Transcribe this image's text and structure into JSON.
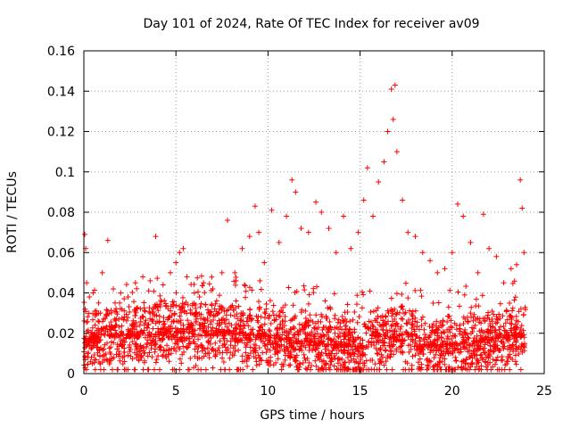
{
  "chart_data": {
    "type": "scatter",
    "title": "Day 101 of 2024, Rate Of TEC Index for receiver av09",
    "xlabel": "GPS time / hours",
    "ylabel": "ROTI / TECUs",
    "xlim": [
      0,
      25
    ],
    "ylim": [
      0,
      0.16
    ],
    "x_ticks": [
      0,
      5,
      10,
      15,
      20,
      25
    ],
    "x_tick_labels": [
      "0",
      "5",
      "10",
      "15",
      "20",
      "25"
    ],
    "y_ticks": [
      0,
      0.02,
      0.04,
      0.06,
      0.08,
      0.1,
      0.12,
      0.14,
      0.16
    ],
    "y_tick_labels": [
      "0",
      "0.02",
      "0.04",
      "0.06",
      "0.08",
      "0.1",
      "0.12",
      "0.14",
      "0.16"
    ],
    "grid": true,
    "marker": "+",
    "color": "#ff0000",
    "series": [
      {
        "x": [
          0.05,
          0.1,
          0.15,
          0.3,
          0.5,
          0.8,
          1.0,
          1.3,
          1.6,
          2.0,
          2.4,
          2.8,
          3.2,
          3.6,
          3.9,
          4.3,
          4.7,
          5.0,
          5.2,
          5.4,
          5.6,
          6.0,
          6.5,
          7.0,
          7.5,
          7.8,
          8.2,
          8.6,
          9.0,
          9.3,
          9.5,
          9.8,
          10.2,
          10.6,
          11.0,
          11.3,
          11.5,
          11.8,
          12.2,
          12.6,
          12.9,
          13.3,
          13.7,
          14.1,
          14.5,
          14.9,
          15.2,
          15.4,
          15.7,
          16.0,
          16.3,
          16.5,
          16.7,
          16.8,
          16.9,
          17.0,
          17.3,
          17.6,
          18.0,
          18.4,
          18.8,
          19.2,
          19.6,
          20.0,
          20.3,
          20.6,
          21.0,
          21.4,
          21.7,
          22.0,
          22.4,
          22.8,
          23.2,
          23.5,
          23.7,
          23.8,
          23.9
        ],
        "y": [
          0.069,
          0.062,
          0.045,
          0.038,
          0.04,
          0.035,
          0.05,
          0.066,
          0.042,
          0.04,
          0.038,
          0.045,
          0.048,
          0.046,
          0.068,
          0.044,
          0.05,
          0.055,
          0.06,
          0.062,
          0.048,
          0.04,
          0.045,
          0.042,
          0.05,
          0.076,
          0.05,
          0.062,
          0.068,
          0.083,
          0.07,
          0.055,
          0.081,
          0.065,
          0.078,
          0.096,
          0.09,
          0.072,
          0.07,
          0.085,
          0.08,
          0.072,
          0.06,
          0.078,
          0.062,
          0.07,
          0.086,
          0.102,
          0.078,
          0.095,
          0.105,
          0.12,
          0.141,
          0.126,
          0.143,
          0.11,
          0.086,
          0.07,
          0.068,
          0.06,
          0.056,
          0.05,
          0.052,
          0.06,
          0.084,
          0.078,
          0.065,
          0.05,
          0.079,
          0.062,
          0.058,
          0.045,
          0.052,
          0.054,
          0.096,
          0.082,
          0.06
        ]
      }
    ]
  }
}
